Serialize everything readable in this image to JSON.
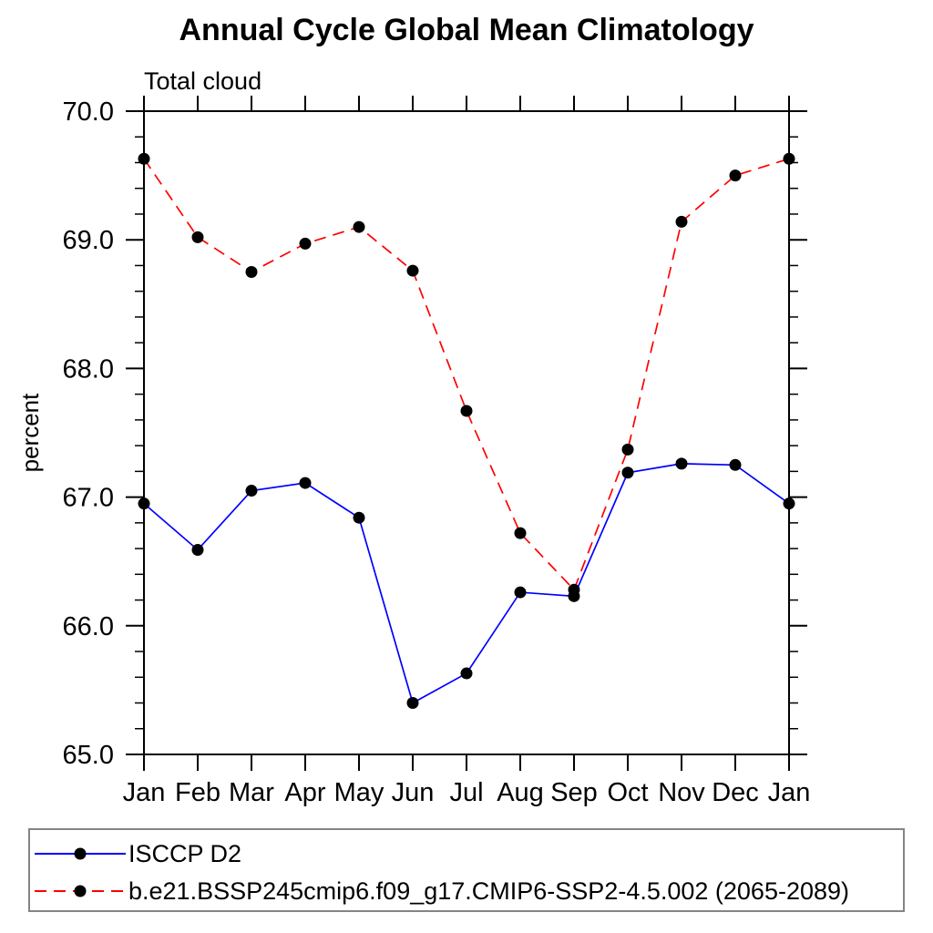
{
  "title": "Annual Cycle Global Mean Climatology",
  "subtitle": "Total cloud",
  "axis": {
    "ylabel": "percent",
    "ytick_labels": [
      "65.0",
      "66.0",
      "67.0",
      "68.0",
      "69.0",
      "70.0"
    ],
    "xtick_labels": [
      "Jan",
      "Feb",
      "Mar",
      "Apr",
      "May",
      "Jun",
      "Jul",
      "Aug",
      "Sep",
      "Oct",
      "Nov",
      "Dec",
      "Jan"
    ]
  },
  "colors": {
    "axis": "#000000",
    "marker": "#000000",
    "series1": "#0000ff",
    "series2": "#ff0000",
    "legend_border": "#848484"
  },
  "legend": {
    "items": [
      {
        "label": "ISCCP D2",
        "color": "#0000ff",
        "style": "solid",
        "marker": "#000000"
      },
      {
        "label": "b.e21.BSSP245cmip6.f09_g17.CMIP6-SSP2-4.5.002 (2065-2089)",
        "color": "#ff0000",
        "style": "dashed",
        "marker": "#000000"
      }
    ]
  },
  "chart_data": {
    "type": "line",
    "title": "Annual Cycle Global Mean Climatology",
    "subtitle": "Total cloud",
    "xlabel": "",
    "ylabel": "percent",
    "categories": [
      "Jan",
      "Feb",
      "Mar",
      "Apr",
      "May",
      "Jun",
      "Jul",
      "Aug",
      "Sep",
      "Oct",
      "Nov",
      "Dec",
      "Jan"
    ],
    "series": [
      {
        "name": "ISCCP D2",
        "color": "#0000ff",
        "style": "solid",
        "marker": "circle",
        "values": [
          66.95,
          66.59,
          67.05,
          67.11,
          66.84,
          65.4,
          65.63,
          66.26,
          66.23,
          67.19,
          67.26,
          67.25,
          66.95
        ]
      },
      {
        "name": "b.e21.BSSP245cmip6.f09_g17.CMIP6-SSP2-4.5.002 (2065-2089)",
        "color": "#ff0000",
        "style": "dashed",
        "marker": "circle",
        "values": [
          69.63,
          69.02,
          68.75,
          68.97,
          69.1,
          68.76,
          67.67,
          66.72,
          66.28,
          67.37,
          69.14,
          69.5,
          69.63
        ]
      }
    ],
    "ylim": [
      65.0,
      70.0
    ],
    "ytick_major": 1.0,
    "ytick_minor": 0.2,
    "grid": false,
    "legend_position": "bottom"
  }
}
